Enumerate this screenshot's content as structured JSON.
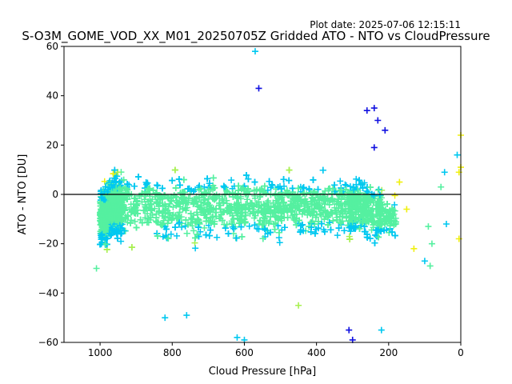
{
  "plot_date": "Plot date: 2025-07-06 12:15:11",
  "chart_data": {
    "type": "scatter",
    "title": "S-O3M_GOME_VOD_XX_M01_20250705Z Gridded ATO - NTO vs CloudPressure",
    "xlabel": "Cloud Pressure [hPa]",
    "ylabel": "ATO - NTO [DU]",
    "xlim": [
      1100,
      0
    ],
    "ylim": [
      -60,
      60
    ],
    "x_axis_reversed": true,
    "xticks": [
      1000,
      800,
      600,
      400,
      200,
      0
    ],
    "yticks": [
      -60,
      -40,
      -20,
      0,
      20,
      40,
      60
    ],
    "marker": "plus",
    "reference_line": {
      "y": 0,
      "color": "#000000"
    },
    "colors": {
      "dense": "#55f0a0",
      "mid": "#00c8f0",
      "high": "#1010e0",
      "low": "#f0f010",
      "lowmid": "#a8f050"
    },
    "series": [
      {
        "x": [
          980,
          965,
          950,
          940,
          930,
          920,
          905,
          890,
          875,
          860,
          845,
          830,
          815,
          800,
          780,
          760,
          740,
          720,
          700,
          680,
          660,
          640,
          620,
          600,
          580,
          560,
          540,
          520,
          500,
          480,
          460,
          440,
          420,
          400,
          380,
          360,
          340,
          320,
          300,
          280,
          260,
          240,
          220,
          200
        ],
        "y": [
          -6,
          -5,
          -5,
          -4,
          -4,
          -5,
          -6,
          -5,
          -5,
          -4,
          -5,
          -6,
          -5,
          -5,
          -4,
          -5,
          -6,
          -5,
          -5,
          -4,
          -5,
          -6,
          -5,
          -5,
          -4,
          -5,
          -6,
          -5,
          -5,
          -4,
          -5,
          -6,
          -5,
          -5,
          -4,
          -5,
          -6,
          -5,
          -5,
          -4,
          -6,
          -7,
          -8,
          -9
        ]
      }
    ],
    "outliers": [
      {
        "x": 570,
        "y": 58
      },
      {
        "x": 560,
        "y": 43
      },
      {
        "x": 260,
        "y": 34
      },
      {
        "x": 240,
        "y": 35
      },
      {
        "x": 230,
        "y": 30
      },
      {
        "x": 210,
        "y": 26
      },
      {
        "x": 240,
        "y": 19
      },
      {
        "x": 1010,
        "y": -30
      },
      {
        "x": 600,
        "y": -59
      },
      {
        "x": 620,
        "y": -58
      },
      {
        "x": 310,
        "y": -55
      },
      {
        "x": 300,
        "y": -59
      },
      {
        "x": 450,
        "y": -45
      },
      {
        "x": 820,
        "y": -50
      },
      {
        "x": 760,
        "y": -49
      },
      {
        "x": 0,
        "y": 24
      },
      {
        "x": 10,
        "y": 16
      },
      {
        "x": 0,
        "y": 11
      },
      {
        "x": 5,
        "y": 9
      },
      {
        "x": 45,
        "y": 9
      },
      {
        "x": 55,
        "y": 3
      },
      {
        "x": 90,
        "y": -13
      },
      {
        "x": 80,
        "y": -20
      },
      {
        "x": 85,
        "y": -29
      },
      {
        "x": 100,
        "y": -27
      },
      {
        "x": 5,
        "y": -18
      },
      {
        "x": 40,
        "y": -12
      },
      {
        "x": 130,
        "y": -22
      },
      {
        "x": 150,
        "y": -6
      },
      {
        "x": 170,
        "y": 5
      },
      {
        "x": 220,
        "y": -55
      }
    ]
  }
}
